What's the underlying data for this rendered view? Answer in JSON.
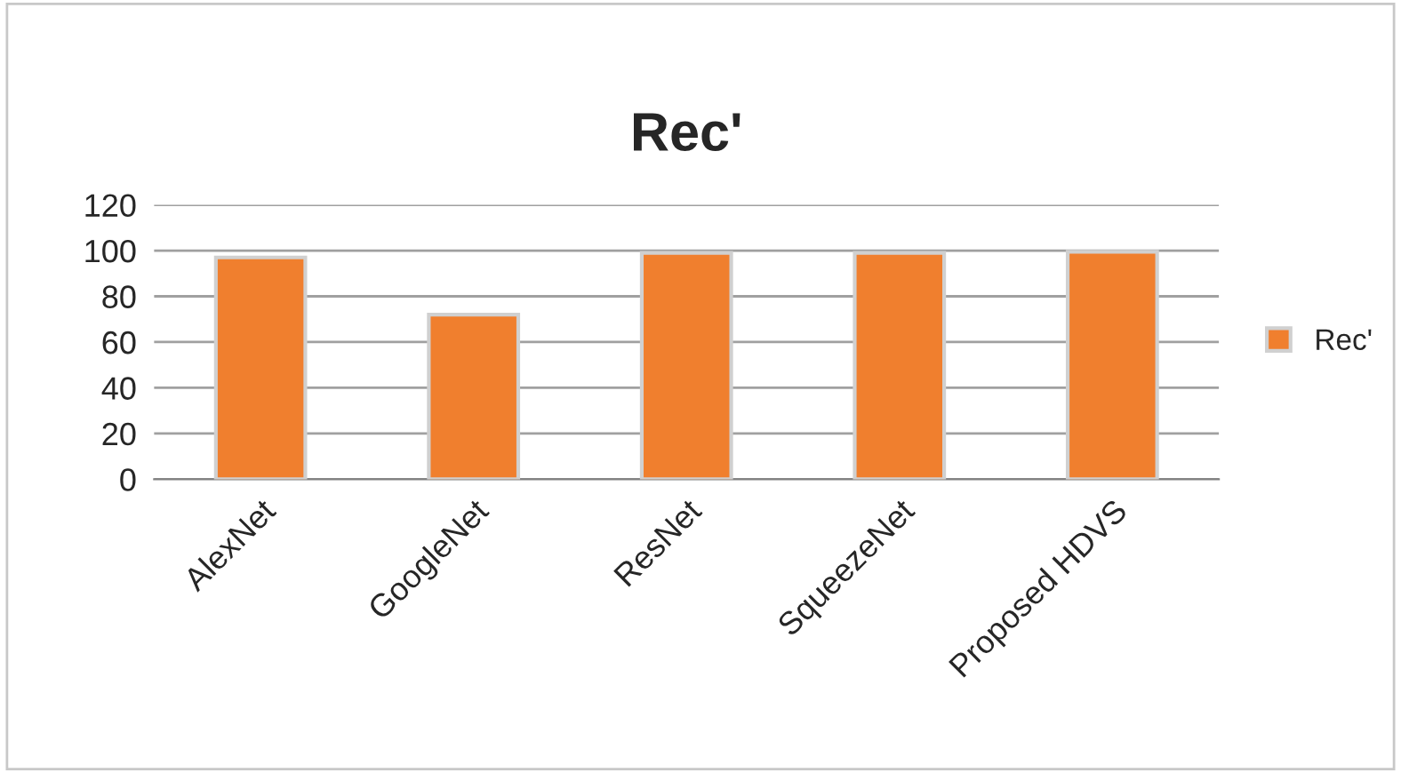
{
  "chart_data": {
    "type": "bar",
    "title": "Rec'",
    "categories": [
      "AlexNet",
      "GoogleNet",
      "ResNet",
      "SqueezeNet",
      "Proposed HDVS"
    ],
    "series": [
      {
        "name": "Rec'",
        "color": "#f07f2e",
        "values": [
          97,
          72,
          99,
          99,
          99.5
        ]
      }
    ],
    "ylim": [
      0,
      120
    ],
    "yticks": [
      0,
      20,
      40,
      60,
      80,
      100,
      120
    ],
    "grid": "y",
    "legend": "right"
  }
}
